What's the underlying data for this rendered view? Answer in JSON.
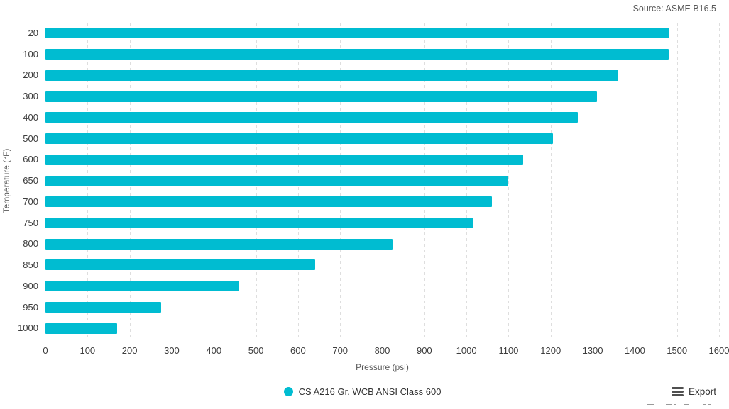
{
  "source_note": "Source: ASME B16.5",
  "chart_data": {
    "type": "bar",
    "orientation": "horizontal",
    "categories": [
      "20",
      "100",
      "200",
      "300",
      "400",
      "500",
      "600",
      "650",
      "700",
      "750",
      "800",
      "850",
      "900",
      "950",
      "1000"
    ],
    "values": [
      1480,
      1480,
      1360,
      1310,
      1265,
      1205,
      1135,
      1100,
      1060,
      1015,
      825,
      640,
      460,
      275,
      170
    ],
    "series_name": "CS A216 Gr. WCB ANSI Class 600",
    "xlabel": "Pressure (psi)",
    "ylabel": "Temperature (°F)",
    "xlim": [
      0,
      1600
    ],
    "x_ticks": [
      0,
      100,
      200,
      300,
      400,
      500,
      600,
      700,
      800,
      900,
      1000,
      1100,
      1200,
      1300,
      1400,
      1500,
      1600
    ],
    "grid": "vertical-dashed",
    "legend_position": "bottom-center",
    "bar_color": "#00BCD1",
    "gridline_color": "#dedede",
    "axis_line_color": "#333333"
  },
  "legend": {
    "label": "CS A216 Gr. WCB ANSI Class 600",
    "marker_color": "#00BCD1"
  },
  "toolbar": {
    "export_label": "Export",
    "menu_icon": "hamburger-icon"
  }
}
